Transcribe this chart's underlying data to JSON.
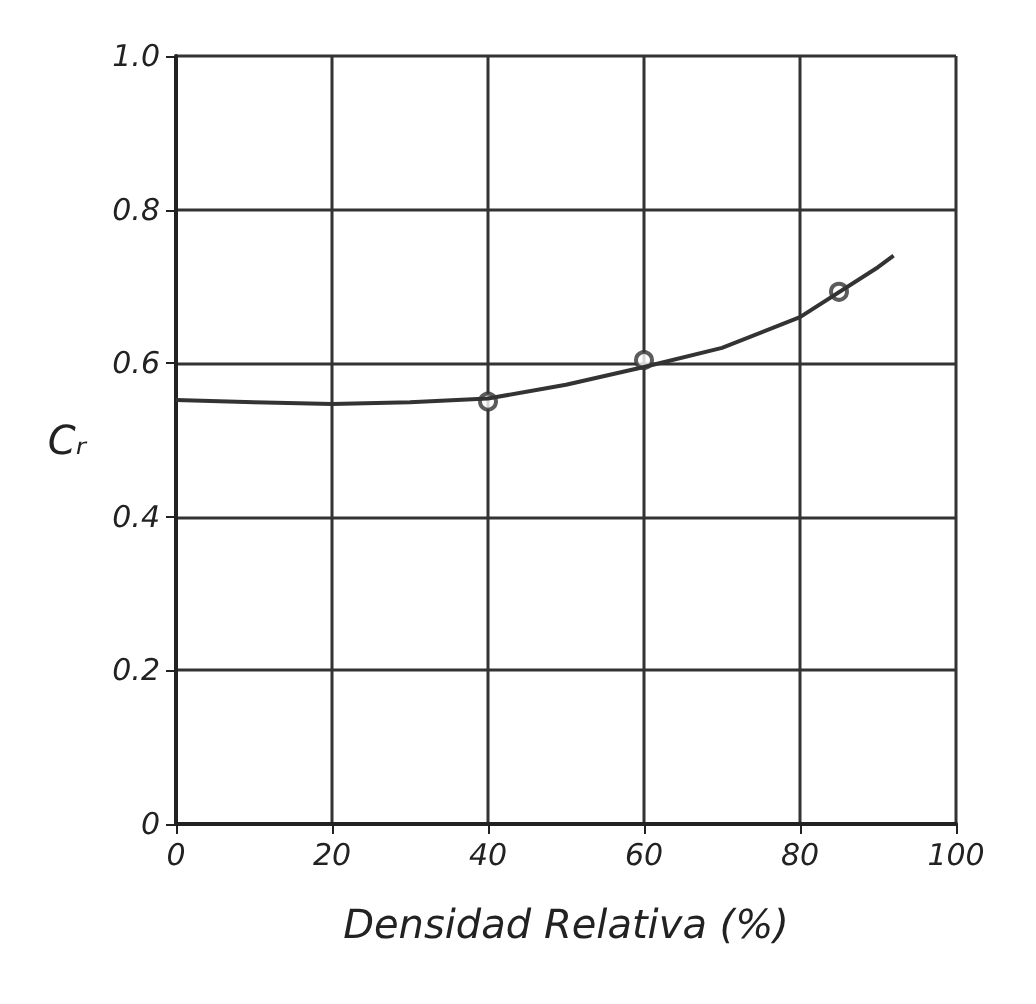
{
  "chart_data": {
    "type": "line",
    "xlabel": "Densidad Relativa (%)",
    "ylabel": "Cᵣ",
    "series": [
      {
        "color": "#333333",
        "marker": "none",
        "x": [
          0,
          10,
          20,
          30,
          40,
          50,
          60,
          70,
          80,
          90,
          92
        ],
        "values": [
          0.552,
          0.549,
          0.547,
          0.549,
          0.554,
          0.572,
          0.595,
          0.62,
          0.66,
          0.725,
          0.74
        ]
      },
      {
        "type": "scatter",
        "color": "#333333",
        "marker": "circle",
        "x": [
          40,
          60,
          85
        ],
        "values": [
          0.55,
          0.604,
          0.693
        ]
      }
    ],
    "xlim": [
      0,
      100
    ],
    "xticks": [
      0,
      20,
      40,
      60,
      80,
      100
    ],
    "ylim": [
      0,
      1
    ],
    "yticks": [
      0,
      0.2,
      0.4,
      0.6,
      0.8,
      {
        "value": 1,
        "label": "1.0"
      }
    ],
    "grid": true
  }
}
